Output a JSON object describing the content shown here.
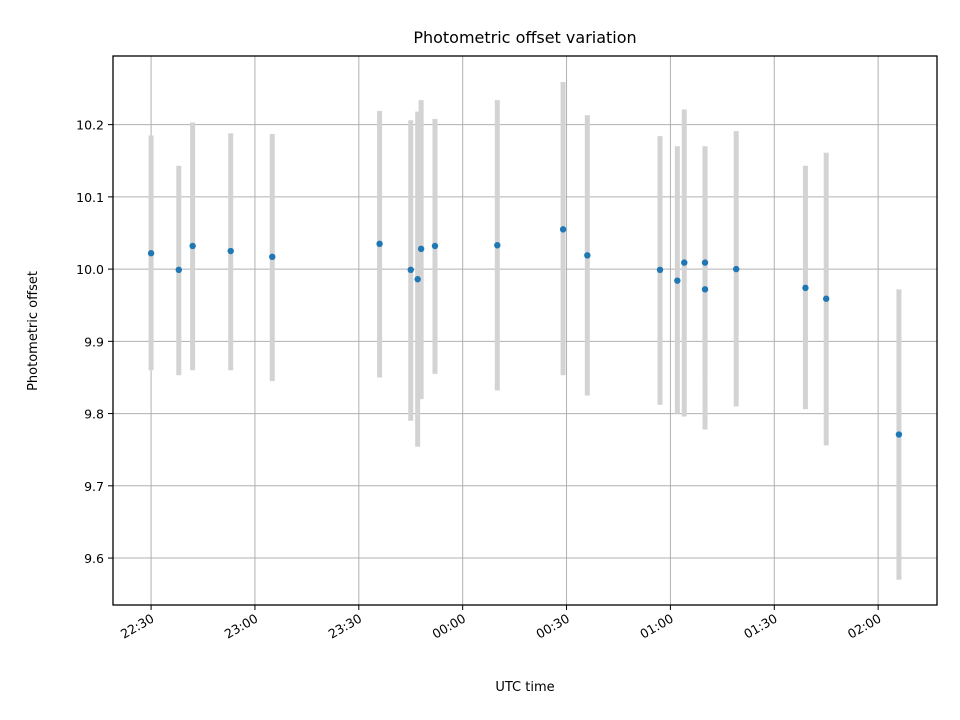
{
  "chart_data": {
    "type": "scatter",
    "title": "Photometric offset variation",
    "xlabel": "UTC time",
    "ylabel": "Photometric offset",
    "grid": true,
    "xlim": [
      "22:19",
      "02:17"
    ],
    "ylim": [
      9.535,
      10.295
    ],
    "xticks": [
      "22:30",
      "23:00",
      "23:30",
      "00:00",
      "00:30",
      "01:00",
      "01:30",
      "02:00"
    ],
    "yticks": [
      "9.6",
      "9.7",
      "9.8",
      "9.9",
      "10.0",
      "10.1",
      "10.2"
    ],
    "colors": {
      "marker": "#1f77b4",
      "errorbar": "#d3d3d3",
      "grid": "#b0b0b0"
    },
    "series": [
      {
        "points": [
          {
            "x": "22:30",
            "y": 10.022,
            "ylow": 9.86,
            "yhigh": 10.185
          },
          {
            "x": "22:38",
            "y": 9.999,
            "ylow": 9.853,
            "yhigh": 10.143
          },
          {
            "x": "22:42",
            "y": 10.032,
            "ylow": 9.86,
            "yhigh": 10.203
          },
          {
            "x": "22:53",
            "y": 10.025,
            "ylow": 9.86,
            "yhigh": 10.188
          },
          {
            "x": "23:05",
            "y": 10.017,
            "ylow": 9.845,
            "yhigh": 10.187
          },
          {
            "x": "23:36",
            "y": 10.035,
            "ylow": 9.85,
            "yhigh": 10.219
          },
          {
            "x": "23:45",
            "y": 9.999,
            "ylow": 9.79,
            "yhigh": 10.206
          },
          {
            "x": "23:47",
            "y": 9.986,
            "ylow": 9.754,
            "yhigh": 10.218
          },
          {
            "x": "23:48",
            "y": 10.028,
            "ylow": 9.82,
            "yhigh": 10.234
          },
          {
            "x": "23:52",
            "y": 10.032,
            "ylow": 9.855,
            "yhigh": 10.208
          },
          {
            "x": "00:10",
            "y": 10.033,
            "ylow": 9.832,
            "yhigh": 10.234
          },
          {
            "x": "00:29",
            "y": 10.055,
            "ylow": 9.853,
            "yhigh": 10.259
          },
          {
            "x": "00:36",
            "y": 10.019,
            "ylow": 9.825,
            "yhigh": 10.213
          },
          {
            "x": "00:57",
            "y": 9.999,
            "ylow": 9.812,
            "yhigh": 10.184
          },
          {
            "x": "01:02",
            "y": 9.984,
            "ylow": 9.8,
            "yhigh": 10.17
          },
          {
            "x": "01:04",
            "y": 10.009,
            "ylow": 9.796,
            "yhigh": 10.221
          },
          {
            "x": "01:10",
            "y": 9.972,
            "ylow": 9.778,
            "yhigh": 10.167
          },
          {
            "x": "01:10",
            "y": 10.009,
            "ylow": 9.848,
            "yhigh": 10.17
          },
          {
            "x": "01:19",
            "y": 10.0,
            "ylow": 9.81,
            "yhigh": 10.191
          },
          {
            "x": "01:39",
            "y": 9.974,
            "ylow": 9.806,
            "yhigh": 10.143
          },
          {
            "x": "01:45",
            "y": 9.959,
            "ylow": 9.756,
            "yhigh": 10.161
          },
          {
            "x": "02:06",
            "y": 9.771,
            "ylow": 9.57,
            "yhigh": 9.972
          }
        ]
      }
    ]
  }
}
